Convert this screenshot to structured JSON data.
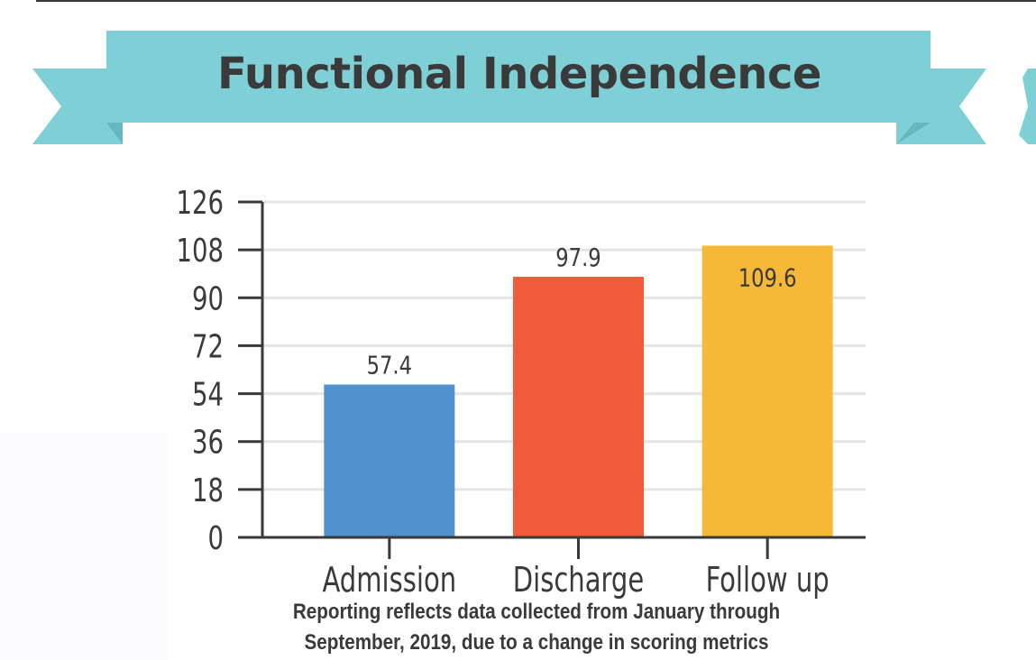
{
  "banner": {
    "title": "Functional Independence",
    "color": "#7fd0d6",
    "shadow_color": "#63b8c0"
  },
  "chart_data": {
    "type": "bar",
    "title": "Functional Independence",
    "categories": [
      "Admission",
      "Discharge",
      "Follow up"
    ],
    "values": [
      57.4,
      97.9,
      109.6
    ],
    "data_labels": [
      "57.4",
      "97.9",
      "109.6"
    ],
    "colors": [
      "#4f90cd",
      "#ef5a3b",
      "#f6b836"
    ],
    "yticks": [
      0,
      18,
      36,
      54,
      72,
      90,
      108,
      126
    ],
    "ylim": [
      0,
      126
    ],
    "xlabel": "",
    "ylabel": "",
    "grid": true
  },
  "footnote": {
    "line1": "Reporting reflects data collected from January through",
    "line2": "September, 2019, due to a change in scoring metrics"
  },
  "colors": {
    "text": "#3a3a3a",
    "axis": "#3a3a3a",
    "grid": "#e4e4e4"
  }
}
